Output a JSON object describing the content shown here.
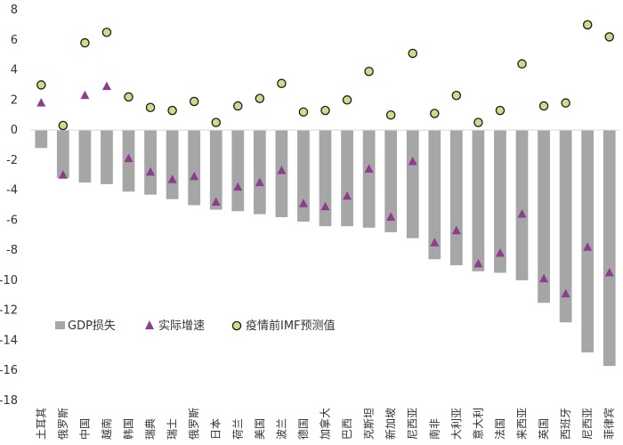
{
  "chart_data": {
    "type": "bar",
    "title": "",
    "xlabel": "",
    "ylabel": "",
    "ylim": [
      -18,
      8
    ],
    "yticks": [
      8,
      6,
      4,
      2,
      0,
      -2,
      -4,
      -6,
      -8,
      -10,
      -12,
      -14,
      -16,
      -18
    ],
    "grid": false,
    "legend_position": "bottom-left",
    "categories": [
      "土耳其",
      "俄罗斯",
      "中国",
      "越南",
      "韩国",
      "瑞典",
      "瑞士",
      "俄罗斯",
      "日本",
      "荷兰",
      "美国",
      "波兰",
      "德国",
      "加拿大",
      "巴西",
      "克斯坦",
      "新加坡",
      "尼西亚",
      "南非",
      "大利亚",
      "意大利",
      "法国",
      "来西亚",
      "英国",
      "西班牙",
      "尼西亚",
      "菲律宾"
    ],
    "series": [
      {
        "name": "GDP损失",
        "kind": "bar",
        "color": "#a6a6a6",
        "values": [
          -1.2,
          -3.2,
          -3.5,
          -3.6,
          -4.1,
          -4.3,
          -4.6,
          -5.0,
          -5.3,
          -5.4,
          -5.6,
          -5.8,
          -6.1,
          -6.4,
          -6.4,
          -6.5,
          -6.8,
          -7.2,
          -8.6,
          -9.0,
          -9.4,
          -9.5,
          -10.0,
          -11.5,
          -12.8,
          -14.8,
          -15.7
        ]
      },
      {
        "name": "实际增速",
        "kind": "triangle",
        "color": "#8e3c8e",
        "values": [
          1.8,
          -3.0,
          2.3,
          2.9,
          -1.9,
          -2.8,
          -3.3,
          -3.1,
          -4.8,
          -3.8,
          -3.5,
          -2.7,
          -4.9,
          -5.1,
          -4.4,
          -2.6,
          -5.8,
          -2.1,
          -7.5,
          -6.7,
          -8.9,
          -8.2,
          -5.6,
          -9.9,
          -10.9,
          -7.8,
          -9.5
        ]
      },
      {
        "name": "疫情前IMF预测值",
        "kind": "circle",
        "color": "#c5e08a",
        "values": [
          3.0,
          0.3,
          5.8,
          6.5,
          2.2,
          1.5,
          1.3,
          1.9,
          0.5,
          1.6,
          2.1,
          3.1,
          1.2,
          1.3,
          2.0,
          3.9,
          1.0,
          5.1,
          1.1,
          2.3,
          0.5,
          1.3,
          4.4,
          1.6,
          1.8,
          7.0,
          6.2
        ]
      }
    ]
  }
}
